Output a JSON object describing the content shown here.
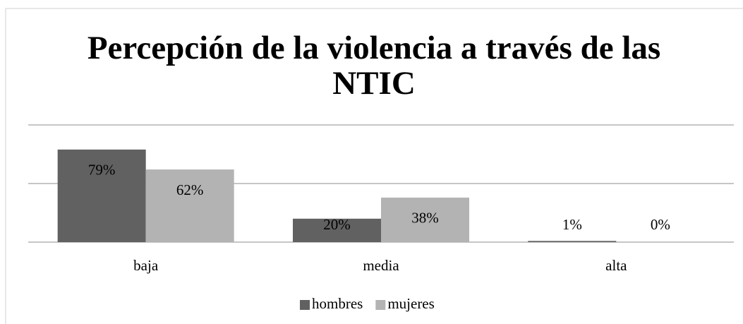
{
  "chart_data": {
    "type": "bar",
    "title_lines": [
      "Percepción de la violencia a través de las",
      "NTIC"
    ],
    "categories": [
      "baja",
      "media",
      "alta"
    ],
    "series": [
      {
        "name": "hombres",
        "color": "#616161",
        "values": [
          79,
          20,
          1
        ],
        "value_labels": [
          "79%",
          "20%",
          "1%"
        ]
      },
      {
        "name": "mujeres",
        "color": "#b3b3b3",
        "values": [
          62,
          38,
          0
        ],
        "value_labels": [
          "62%",
          "38%",
          "0%"
        ]
      }
    ],
    "ylim": [
      0,
      100
    ],
    "yticks": [
      0,
      50,
      100
    ],
    "grid": true,
    "legend": "bottom"
  }
}
